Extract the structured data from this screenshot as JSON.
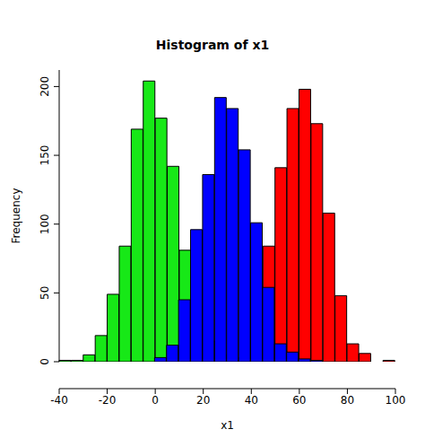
{
  "chart_data": {
    "type": "histogram",
    "title": "Histogram of x1",
    "x_label": "x1",
    "y_label": "Frequency",
    "bins": [
      -40,
      -35,
      -30,
      -25,
      -20,
      -15,
      -10,
      -5,
      0,
      5,
      10,
      15,
      20,
      25,
      30,
      35,
      40,
      45,
      50,
      55,
      60,
      65,
      70,
      75,
      80,
      85,
      90,
      95,
      100
    ],
    "series": [
      {
        "color": "#17e817",
        "values": [
          1,
          1,
          5,
          19,
          49,
          84,
          169,
          204,
          177,
          142,
          81,
          40,
          15,
          5,
          1,
          0,
          0,
          0,
          0,
          0,
          0,
          0,
          0,
          0,
          0,
          0,
          0,
          0
        ]
      },
      {
        "color": "#ff0000",
        "values": [
          0,
          0,
          0,
          0,
          0,
          0,
          0,
          0,
          0,
          0,
          0,
          0,
          0,
          0,
          0,
          3,
          20,
          84,
          141,
          184,
          198,
          173,
          108,
          48,
          13,
          6,
          0,
          1
        ]
      },
      {
        "color": "#0000ff",
        "values": [
          0,
          0,
          0,
          0,
          0,
          0,
          0,
          0,
          3,
          12,
          45,
          96,
          136,
          192,
          184,
          154,
          101,
          54,
          13,
          7,
          2,
          1,
          0,
          0,
          0,
          0,
          0,
          0
        ]
      }
    ],
    "xlim": [
      -40,
      100
    ],
    "xticks": [
      -40,
      -20,
      0,
      20,
      40,
      60,
      80,
      100
    ],
    "ylim": [
      0,
      212
    ],
    "yticks": [
      0,
      50,
      100,
      150,
      200
    ]
  }
}
